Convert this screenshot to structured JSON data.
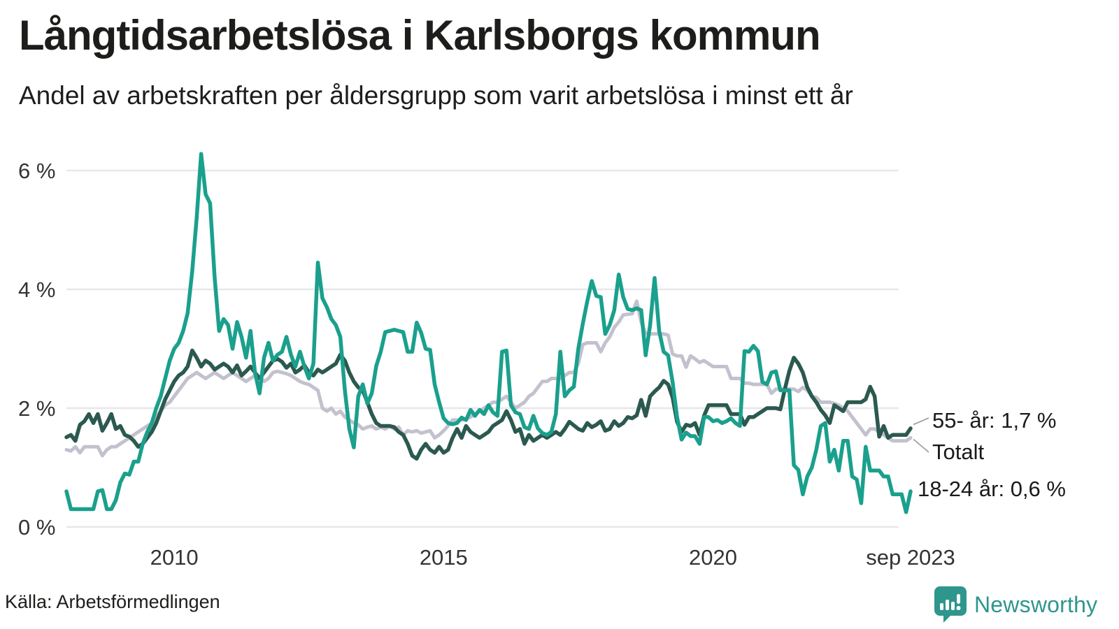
{
  "title": "Långtidsarbetslösa i Karlsborgs kommun",
  "subtitle": "Andel av arbetskraften per åldersgrupp som varit arbetslösa i minst ett år",
  "source": "Källa: Arbetsförmedlingen",
  "branding": {
    "name": "Newsworthy",
    "color": "#2e968d"
  },
  "colors": {
    "background": "#ffffff",
    "gridline": "#e8e8ec",
    "axis_text": "#333333",
    "text": "#1d1d1b",
    "connector": "#999999",
    "teal": "#1aa08d",
    "dark_green": "#2b594f",
    "gray": "#c4c1ce"
  },
  "chart_data": {
    "type": "line",
    "title": "Långtidsarbetslösa i Karlsborgs kommun",
    "subtitle": "Andel av arbetskraften per åldersgrupp som varit arbetslösa i minst ett år",
    "x_unit": "month",
    "x_start": "2008-01",
    "x_end": "2023-09",
    "n_points": 189,
    "ylim": [
      0,
      6.6
    ],
    "grid": "horizontal",
    "legend_position": "right-of-line-ends",
    "y_ticks": [
      {
        "value": 0,
        "label": "0 %"
      },
      {
        "value": 2,
        "label": "2 %"
      },
      {
        "value": 4,
        "label": "4 %"
      },
      {
        "value": 6,
        "label": "6 %"
      }
    ],
    "x_ticks": [
      {
        "month_index": 24,
        "label": "2010"
      },
      {
        "month_index": 84,
        "label": "2015"
      },
      {
        "month_index": 144,
        "label": "2020"
      },
      {
        "month_index": 188,
        "label": "sep 2023"
      }
    ],
    "series": [
      {
        "name": "Totalt",
        "end_label": "Totalt",
        "end_value": 1.5,
        "color": "#c4c1ce",
        "width": 5,
        "values": [
          1.3,
          1.28,
          1.35,
          1.25,
          1.35,
          1.35,
          1.35,
          1.35,
          1.2,
          1.3,
          1.35,
          1.35,
          1.4,
          1.45,
          1.5,
          1.55,
          1.6,
          1.65,
          1.7,
          1.75,
          1.85,
          1.95,
          2.05,
          2.1,
          2.2,
          2.3,
          2.4,
          2.5,
          2.55,
          2.6,
          2.55,
          2.5,
          2.55,
          2.6,
          2.55,
          2.5,
          2.55,
          2.6,
          2.55,
          2.5,
          2.45,
          2.5,
          2.55,
          2.5,
          2.45,
          2.5,
          2.6,
          2.62,
          2.6,
          2.58,
          2.55,
          2.5,
          2.45,
          2.42,
          2.4,
          2.35,
          2.3,
          2.0,
          1.95,
          2.0,
          1.9,
          1.95,
          1.85,
          1.8,
          1.75,
          1.72,
          1.65,
          1.68,
          1.7,
          1.65,
          1.68,
          1.65,
          1.7,
          1.65,
          1.68,
          1.55,
          1.62,
          1.6,
          1.62,
          1.58,
          1.6,
          1.62,
          1.5,
          1.55,
          1.62,
          1.7,
          1.8,
          1.8,
          1.8,
          1.82,
          1.85,
          1.9,
          1.95,
          2.0,
          2.05,
          2.1,
          2.1,
          2.15,
          2.2,
          2.1,
          2.0,
          2.05,
          2.1,
          2.2,
          2.25,
          2.35,
          2.45,
          2.45,
          2.5,
          2.5,
          2.5,
          2.55,
          2.6,
          2.6,
          2.75,
          3.07,
          3.1,
          3.1,
          3.1,
          2.95,
          3.1,
          3.2,
          3.36,
          3.45,
          3.57,
          3.58,
          3.59,
          3.8,
          3.45,
          3.26,
          3.25,
          3.25,
          3.25,
          3.25,
          3.23,
          2.91,
          2.88,
          2.88,
          2.69,
          2.88,
          2.83,
          2.77,
          2.8,
          2.75,
          2.7,
          2.7,
          2.7,
          2.7,
          2.5,
          2.5,
          2.5,
          2.42,
          2.42,
          2.4,
          2.4,
          2.4,
          2.4,
          2.25,
          2.32,
          2.32,
          2.32,
          2.32,
          2.32,
          2.28,
          2.35,
          2.3,
          2.2,
          2.18,
          2.1,
          2.1,
          2.1,
          2.08,
          2.05,
          2.0,
          1.95,
          1.85,
          1.75,
          1.65,
          1.55,
          1.65,
          1.65,
          1.6,
          1.55,
          1.5,
          1.45,
          1.45,
          1.45,
          1.45,
          1.5
        ]
      },
      {
        "name": "55- år",
        "end_label": "55- år: 1,7 %",
        "end_value": 1.7,
        "color": "#2b594f",
        "width": 5.5,
        "values": [
          1.51,
          1.55,
          1.45,
          1.72,
          1.78,
          1.9,
          1.75,
          1.9,
          1.62,
          1.75,
          1.9,
          1.65,
          1.7,
          1.55,
          1.52,
          1.45,
          1.35,
          1.4,
          1.5,
          1.6,
          1.75,
          1.95,
          2.15,
          2.3,
          2.45,
          2.55,
          2.6,
          2.7,
          2.97,
          2.85,
          2.7,
          2.8,
          2.75,
          2.65,
          2.7,
          2.75,
          2.7,
          2.6,
          2.72,
          2.55,
          2.62,
          2.7,
          2.6,
          2.5,
          2.6,
          2.7,
          2.8,
          2.83,
          2.78,
          2.68,
          2.75,
          2.6,
          2.65,
          2.72,
          2.6,
          2.55,
          2.65,
          2.6,
          2.65,
          2.7,
          2.75,
          2.9,
          2.8,
          2.6,
          2.45,
          2.35,
          2.3,
          2.1,
          1.9,
          1.75,
          1.7,
          1.7,
          1.7,
          1.68,
          1.6,
          1.55,
          1.4,
          1.2,
          1.15,
          1.3,
          1.4,
          1.3,
          1.25,
          1.35,
          1.25,
          1.3,
          1.5,
          1.65,
          1.5,
          1.7,
          1.6,
          1.55,
          1.5,
          1.55,
          1.6,
          1.7,
          1.75,
          1.8,
          1.95,
          1.8,
          1.6,
          1.65,
          1.4,
          1.55,
          1.45,
          1.5,
          1.55,
          1.5,
          1.55,
          1.6,
          1.55,
          1.65,
          1.77,
          1.71,
          1.65,
          1.62,
          1.75,
          1.68,
          1.72,
          1.78,
          1.62,
          1.65,
          1.78,
          1.7,
          1.75,
          1.85,
          1.83,
          1.88,
          2.14,
          1.87,
          2.2,
          2.28,
          2.35,
          2.46,
          2.4,
          2.18,
          1.77,
          1.6,
          1.72,
          1.7,
          1.75,
          1.55,
          1.87,
          2.05,
          2.05,
          2.05,
          2.05,
          2.05,
          1.9,
          1.9,
          1.9,
          1.72,
          1.85,
          1.85,
          1.9,
          1.95,
          2.0,
          2.0,
          2.0,
          1.98,
          2.32,
          2.63,
          2.85,
          2.75,
          2.6,
          2.35,
          2.2,
          2.1,
          1.97,
          1.88,
          1.75,
          2.05,
          2.0,
          1.95,
          2.1,
          2.1,
          2.1,
          2.1,
          2.15,
          2.36,
          2.2,
          1.52,
          1.7,
          1.5,
          1.55,
          1.55,
          1.55,
          1.55,
          1.66
        ]
      },
      {
        "name": "18-24 år",
        "end_label": "18-24 år: 0,6 %",
        "end_value": 0.6,
        "color": "#1aa08d",
        "width": 5.5,
        "values": [
          0.6,
          0.3,
          0.3,
          0.3,
          0.3,
          0.3,
          0.3,
          0.6,
          0.62,
          0.3,
          0.3,
          0.45,
          0.75,
          0.9,
          0.88,
          1.1,
          1.1,
          1.4,
          1.6,
          1.75,
          2.0,
          2.2,
          2.5,
          2.8,
          3.0,
          3.1,
          3.3,
          3.6,
          4.3,
          5.2,
          6.28,
          5.6,
          5.45,
          4.2,
          3.3,
          3.5,
          3.4,
          3.0,
          3.45,
          3.2,
          2.85,
          3.3,
          2.6,
          2.25,
          2.85,
          3.1,
          2.8,
          2.9,
          2.95,
          3.2,
          2.9,
          2.7,
          2.95,
          2.7,
          2.5,
          2.75,
          4.45,
          3.85,
          3.7,
          3.5,
          3.4,
          3.2,
          2.3,
          1.65,
          1.34,
          2.2,
          2.4,
          2.08,
          2.25,
          2.71,
          2.95,
          3.28,
          3.3,
          3.32,
          3.3,
          3.28,
          2.95,
          2.95,
          3.44,
          3.27,
          3.0,
          2.98,
          2.4,
          2.1,
          1.83,
          1.75,
          1.73,
          1.75,
          1.84,
          1.8,
          1.97,
          1.87,
          1.97,
          1.9,
          2.05,
          1.93,
          1.87,
          2.95,
          2.97,
          2.05,
          1.93,
          1.9,
          1.68,
          1.65,
          1.87,
          1.66,
          1.58,
          1.55,
          1.6,
          1.9,
          2.95,
          2.2,
          2.3,
          2.36,
          3.0,
          3.42,
          3.8,
          4.14,
          3.89,
          3.87,
          3.25,
          3.4,
          3.65,
          4.25,
          3.87,
          3.67,
          3.65,
          3.68,
          3.65,
          2.89,
          3.4,
          4.19,
          3.3,
          2.95,
          2.89,
          2.44,
          1.85,
          1.47,
          1.59,
          1.53,
          1.53,
          1.4,
          1.85,
          1.85,
          1.78,
          1.8,
          1.75,
          1.78,
          1.83,
          1.75,
          1.7,
          2.96,
          2.95,
          3.05,
          2.96,
          2.44,
          2.4,
          2.6,
          2.62,
          2.3,
          2.3,
          2.3,
          1.04,
          0.96,
          0.55,
          0.85,
          1.0,
          1.3,
          1.7,
          1.75,
          1.1,
          1.3,
          0.95,
          1.45,
          1.45,
          0.85,
          0.8,
          0.4,
          1.35,
          0.95,
          0.95,
          0.95,
          0.85,
          0.85,
          0.55,
          0.55,
          0.55,
          0.25,
          0.6
        ]
      }
    ]
  }
}
